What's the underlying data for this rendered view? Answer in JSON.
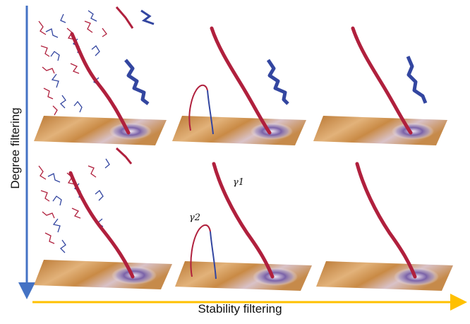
{
  "axes": {
    "vertical_label": "Degree filtering",
    "horizontal_label": "Stability filtering",
    "vertical_arrow_color": "#4472c4",
    "horizontal_arrow_color": "#ffc000"
  },
  "annotations": {
    "gamma1": "γ1",
    "gamma2": "γ2"
  },
  "colors": {
    "red_curve": "#b0203d",
    "blue_curve": "#3346a0",
    "terrain_warm": "#c07a2e",
    "terrain_cool": "#6e5a9c"
  }
}
